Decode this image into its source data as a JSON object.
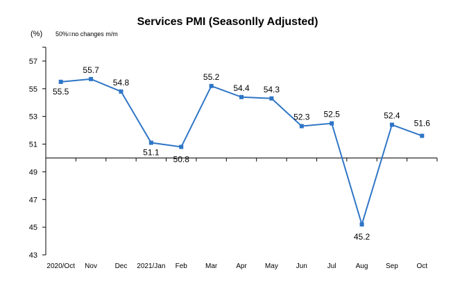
{
  "chart_data": {
    "type": "line",
    "title": "Services PMI (Seasonlly Adjusted)",
    "ylabel": "(%)",
    "note": "50%=no changes  m/m",
    "categories": [
      "2020/Oct",
      "Nov",
      "Dec",
      "2021/Jan",
      "Feb",
      "Mar",
      "Apr",
      "May",
      "Jun",
      "Jul",
      "Aug",
      "Sep",
      "Oct"
    ],
    "values": [
      55.5,
      55.7,
      54.8,
      51.1,
      50.8,
      55.2,
      54.4,
      54.3,
      52.3,
      52.5,
      45.2,
      52.4,
      51.6
    ],
    "data_labels": [
      "55.5",
      "55.7",
      "54.8",
      "51.1",
      "50.8",
      "55.2",
      "54.4",
      "54.3",
      "52.3",
      "52.5",
      "45.2",
      "52.4",
      "51.6"
    ],
    "yticks": [
      "57",
      "55",
      "53",
      "51",
      "49",
      "47",
      "45",
      "43"
    ],
    "ylim": [
      43,
      58
    ],
    "baseline": 50,
    "grid": false,
    "legend": "none",
    "line_color": "#2E75C6",
    "marker_color": "#2E75C6"
  }
}
